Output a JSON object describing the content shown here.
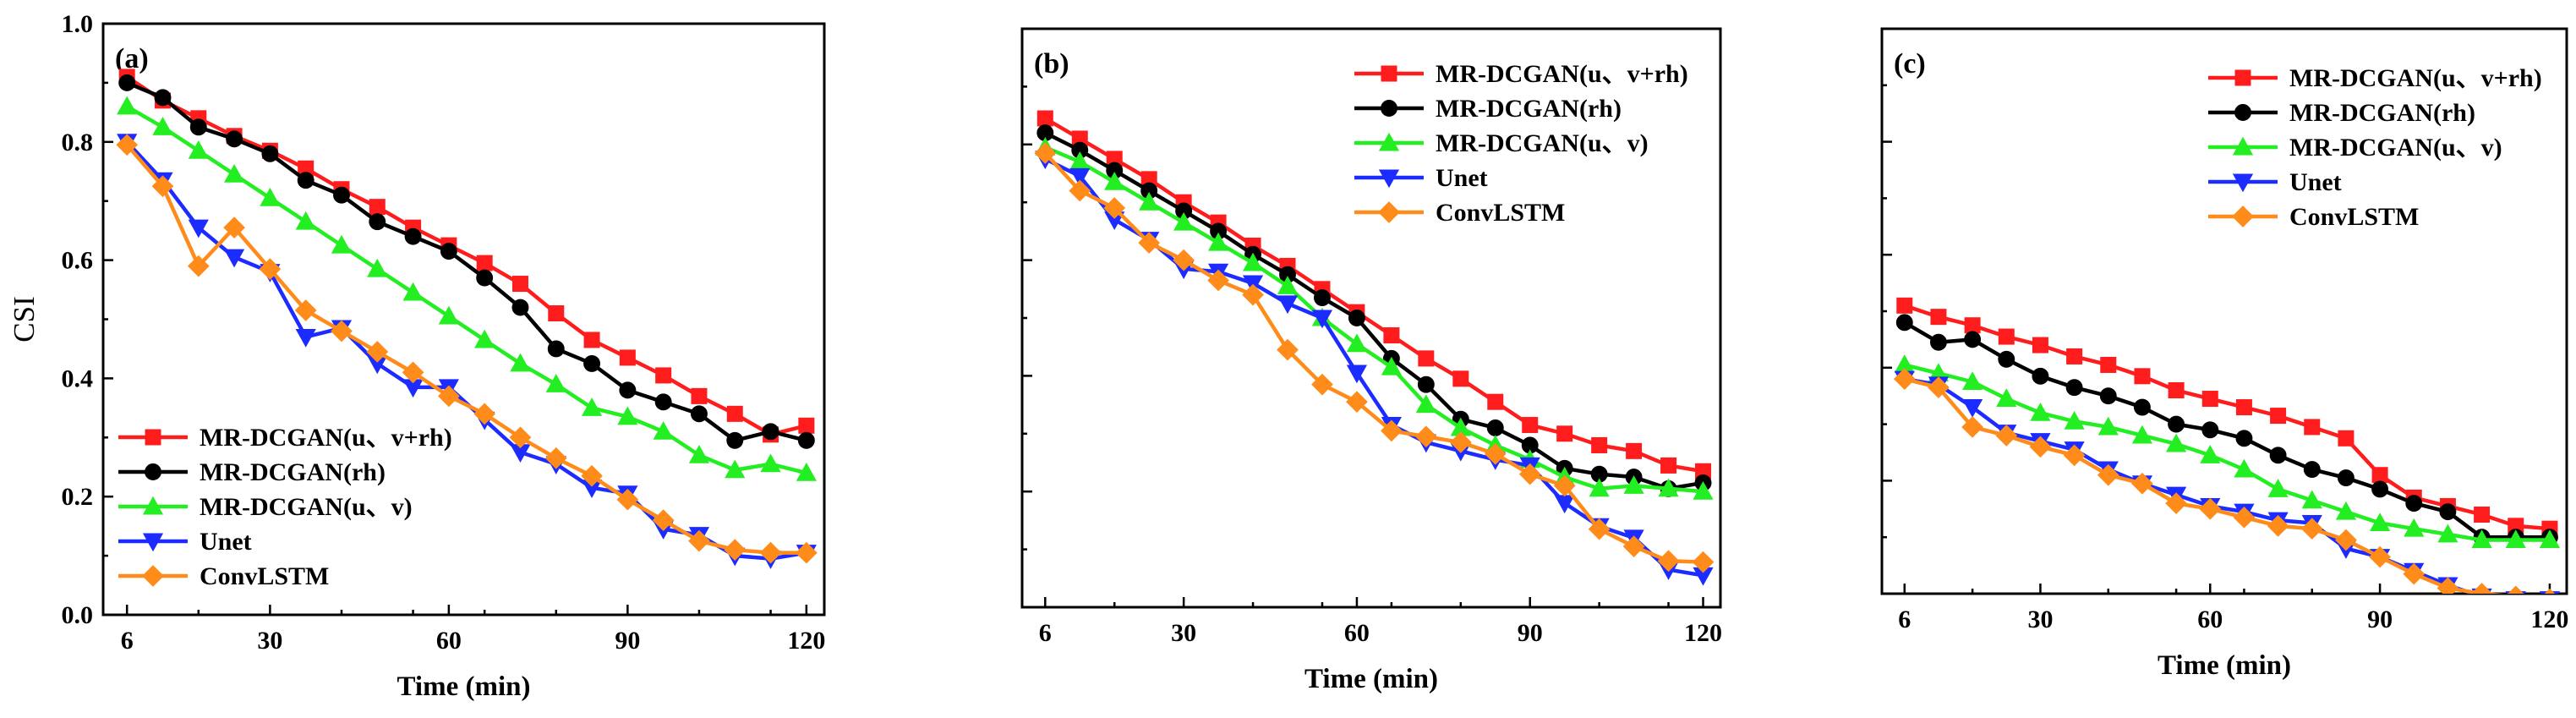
{
  "colors": {
    "MR-DCGAN(u、v+rh)": "#ff1c1c",
    "MR-DCGAN(rh)": "#000000",
    "MR-DCGAN(u、v)": "#22ee22",
    "Unet": "#1c2bff",
    "ConvLSTM": "#ff8c1a"
  },
  "markers": {
    "MR-DCGAN(u、v+rh)": "square",
    "MR-DCGAN(rh)": "circle",
    "MR-DCGAN(u、v)": "triangle-up",
    "Unet": "triangle-down",
    "ConvLSTM": "diamond"
  },
  "chart_data": [
    {
      "type": "line",
      "panel_label": "(a)",
      "xlabel": "Time (min)",
      "ylabel": "CSI",
      "xlim": [
        2,
        123
      ],
      "ylim": [
        0,
        1.0
      ],
      "xticks": [
        6,
        30,
        60,
        90,
        120
      ],
      "yticks": [
        0.0,
        0.2,
        0.4,
        0.6,
        0.8,
        1.0
      ],
      "ytick_labels": [
        "0.0",
        "0.2",
        "0.4",
        "0.6",
        "0.8",
        "1.0"
      ],
      "legend_position": "lower-left",
      "x": [
        6,
        12,
        18,
        24,
        30,
        36,
        42,
        48,
        54,
        60,
        66,
        72,
        78,
        84,
        90,
        96,
        102,
        108,
        114,
        120
      ],
      "series": [
        {
          "name": "MR-DCGAN(u、v+rh)",
          "values": [
            0.91,
            0.87,
            0.84,
            0.81,
            0.785,
            0.755,
            0.72,
            0.69,
            0.655,
            0.625,
            0.595,
            0.56,
            0.51,
            0.465,
            0.435,
            0.405,
            0.37,
            0.34,
            0.305,
            0.32
          ]
        },
        {
          "name": "MR-DCGAN(rh)",
          "values": [
            0.9,
            0.875,
            0.825,
            0.805,
            0.78,
            0.735,
            0.71,
            0.665,
            0.64,
            0.615,
            0.57,
            0.52,
            0.45,
            0.425,
            0.38,
            0.36,
            0.34,
            0.295,
            0.31,
            0.295
          ]
        },
        {
          "name": "MR-DCGAN(u、v)",
          "values": [
            0.86,
            0.825,
            0.785,
            0.745,
            0.705,
            0.665,
            0.625,
            0.585,
            0.545,
            0.505,
            0.465,
            0.425,
            0.39,
            0.35,
            0.335,
            0.31,
            0.27,
            0.245,
            0.255,
            0.24
          ]
        },
        {
          "name": "Unet",
          "values": [
            0.8,
            0.735,
            0.655,
            0.605,
            0.58,
            0.47,
            0.485,
            0.425,
            0.385,
            0.385,
            0.33,
            0.275,
            0.255,
            0.215,
            0.205,
            0.145,
            0.135,
            0.1,
            0.095,
            0.105
          ]
        },
        {
          "name": "ConvLSTM",
          "values": [
            0.795,
            0.725,
            0.59,
            0.655,
            0.585,
            0.515,
            0.48,
            0.445,
            0.41,
            0.37,
            0.34,
            0.3,
            0.265,
            0.235,
            0.195,
            0.16,
            0.125,
            0.11,
            0.105,
            0.105
          ]
        }
      ]
    },
    {
      "type": "line",
      "panel_label": "(b)",
      "xlabel": "Time (min)",
      "ylabel": "",
      "xlim": [
        2,
        123
      ],
      "ylim": [
        0,
        1.0
      ],
      "xticks": [
        6,
        30,
        60,
        90,
        120
      ],
      "yticks": [
        0.2,
        0.4,
        0.6,
        0.8
      ],
      "ytick_labels": [],
      "legend_position": "top-right",
      "x": [
        6,
        12,
        18,
        24,
        30,
        36,
        42,
        48,
        54,
        60,
        66,
        72,
        78,
        84,
        90,
        96,
        102,
        108,
        114,
        120
      ],
      "series": [
        {
          "name": "MR-DCGAN(u、v+rh)",
          "values": [
            0.845,
            0.81,
            0.775,
            0.74,
            0.7,
            0.665,
            0.625,
            0.59,
            0.55,
            0.51,
            0.47,
            0.43,
            0.395,
            0.355,
            0.315,
            0.3,
            0.28,
            0.27,
            0.245,
            0.235
          ]
        },
        {
          "name": "MR-DCGAN(rh)",
          "values": [
            0.82,
            0.79,
            0.755,
            0.72,
            0.685,
            0.65,
            0.61,
            0.575,
            0.535,
            0.5,
            0.43,
            0.385,
            0.325,
            0.31,
            0.28,
            0.24,
            0.23,
            0.225,
            0.205,
            0.215
          ]
        },
        {
          "name": "MR-DCGAN(u、v)",
          "values": [
            0.795,
            0.77,
            0.735,
            0.7,
            0.665,
            0.63,
            0.595,
            0.555,
            0.5,
            0.455,
            0.415,
            0.35,
            0.31,
            0.28,
            0.255,
            0.225,
            0.205,
            0.21,
            0.205,
            0.2
          ]
        },
        {
          "name": "Unet",
          "values": [
            0.775,
            0.745,
            0.67,
            0.635,
            0.585,
            0.58,
            0.56,
            0.525,
            0.5,
            0.405,
            0.315,
            0.285,
            0.27,
            0.255,
            0.245,
            0.18,
            0.14,
            0.12,
            0.065,
            0.055
          ]
        },
        {
          "name": "ConvLSTM",
          "values": [
            0.785,
            0.72,
            0.69,
            0.63,
            0.6,
            0.565,
            0.54,
            0.445,
            0.385,
            0.355,
            0.305,
            0.295,
            0.285,
            0.265,
            0.23,
            0.21,
            0.135,
            0.105,
            0.08,
            0.078
          ]
        }
      ]
    },
    {
      "type": "line",
      "panel_label": "(c)",
      "xlabel": "Time (min)",
      "ylabel": "",
      "xlim": [
        2,
        123
      ],
      "ylim": [
        0,
        1.0
      ],
      "xticks": [
        6,
        30,
        60,
        90,
        120
      ],
      "yticks": [
        0.2,
        0.4,
        0.6,
        0.8
      ],
      "ytick_labels": [],
      "legend_position": "top-right",
      "x": [
        6,
        12,
        18,
        24,
        30,
        36,
        42,
        48,
        54,
        60,
        66,
        72,
        78,
        84,
        90,
        96,
        102,
        108,
        114,
        120
      ],
      "series": [
        {
          "name": "MR-DCGAN(u、v+rh)",
          "values": [
            0.51,
            0.49,
            0.475,
            0.455,
            0.44,
            0.42,
            0.405,
            0.385,
            0.36,
            0.345,
            0.33,
            0.315,
            0.295,
            0.275,
            0.21,
            0.17,
            0.155,
            0.14,
            0.12,
            0.115
          ]
        },
        {
          "name": "MR-DCGAN(rh)",
          "values": [
            0.48,
            0.445,
            0.45,
            0.415,
            0.385,
            0.365,
            0.35,
            0.33,
            0.3,
            0.29,
            0.275,
            0.245,
            0.22,
            0.205,
            0.185,
            0.16,
            0.145,
            0.1,
            0.1,
            0.1
          ]
        },
        {
          "name": "MR-DCGAN(u、v)",
          "values": [
            0.405,
            0.39,
            0.375,
            0.345,
            0.32,
            0.305,
            0.295,
            0.28,
            0.265,
            0.245,
            0.22,
            0.185,
            0.165,
            0.145,
            0.125,
            0.115,
            0.105,
            0.095,
            0.095,
            0.095
          ]
        },
        {
          "name": "Unet",
          "values": [
            0.38,
            0.37,
            0.33,
            0.285,
            0.27,
            0.255,
            0.22,
            0.195,
            0.175,
            0.155,
            0.145,
            0.13,
            0.125,
            0.08,
            0.065,
            0.04,
            0.015,
            -0.005,
            -0.01,
            -0.01
          ]
        },
        {
          "name": "ConvLSTM",
          "values": [
            0.38,
            0.365,
            0.295,
            0.28,
            0.26,
            0.245,
            0.21,
            0.195,
            0.16,
            0.15,
            0.135,
            0.12,
            0.115,
            0.095,
            0.065,
            0.035,
            0.01,
            0.0,
            -0.005,
            -0.01
          ]
        }
      ]
    }
  ]
}
